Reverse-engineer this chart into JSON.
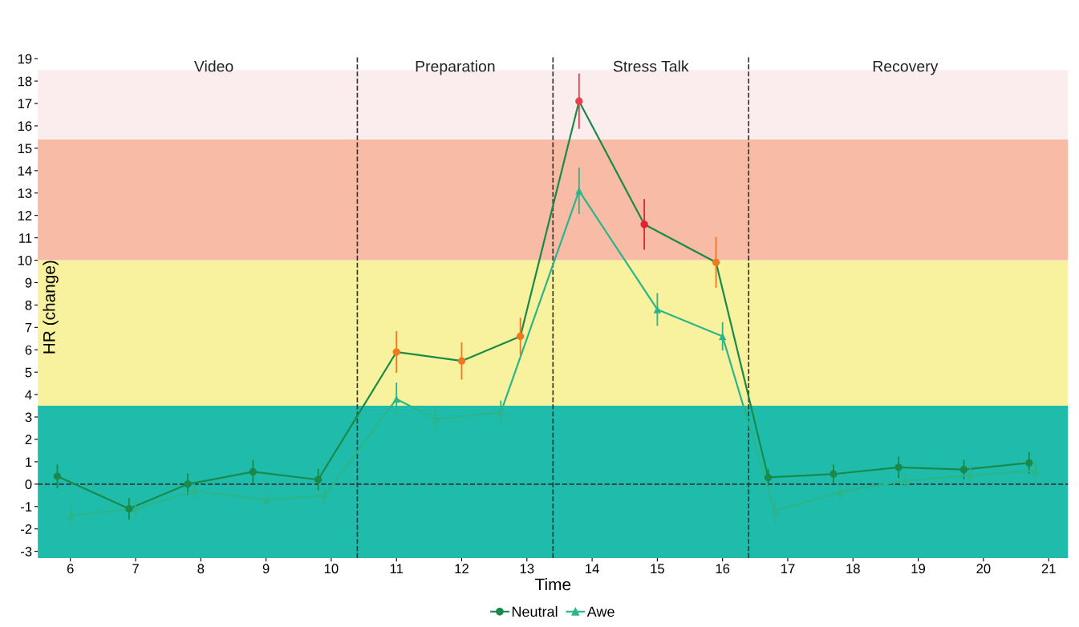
{
  "chart_data": {
    "type": "line",
    "xlabel": "Time",
    "ylabel": "HR (change)",
    "xlim": [
      5.5,
      21.3
    ],
    "xticks": [
      6,
      7,
      8,
      9,
      10,
      11,
      12,
      13,
      14,
      15,
      16,
      17,
      18,
      19,
      20,
      21
    ],
    "ylim": [
      -3.3,
      19.1
    ],
    "yticks": [
      -3,
      -2,
      -1,
      0,
      1,
      2,
      3,
      4,
      5,
      6,
      7,
      8,
      9,
      10,
      11,
      12,
      13,
      14,
      15,
      16,
      17,
      18,
      19
    ],
    "grid": false,
    "legend": "bottom",
    "line_style": "solid",
    "bands": [
      {
        "axis": "y",
        "from": -3.3,
        "to": 3.5,
        "color": "#1fbcac"
      },
      {
        "axis": "y",
        "from": 3.5,
        "to": 10,
        "color": "#f8f29e"
      },
      {
        "axis": "y",
        "from": 10,
        "to": 15.4,
        "color": "#f8bba5"
      },
      {
        "axis": "y",
        "from": 15.4,
        "to": 18.5,
        "color": "#fbecee"
      }
    ],
    "ref_lines": [
      {
        "axis": "y",
        "value": 0,
        "line_style": "dashed",
        "color": "#333333"
      },
      {
        "axis": "x",
        "value": 10.4,
        "line_style": "dashed",
        "color": "#333333"
      },
      {
        "axis": "x",
        "value": 13.4,
        "line_style": "dashed",
        "color": "#333333"
      },
      {
        "axis": "x",
        "value": 16.4,
        "line_style": "dashed",
        "color": "#333333"
      }
    ],
    "annotations": [
      {
        "text": "Video",
        "x": 8.2,
        "y": 18.6
      },
      {
        "text": "Preparation",
        "x": 11.9,
        "y": 18.6
      },
      {
        "text": "Stress Talk",
        "x": 14.9,
        "y": 18.6
      },
      {
        "text": "Recovery",
        "x": 18.8,
        "y": 18.6
      }
    ],
    "series": [
      {
        "name": "Neutral",
        "color": "#1a8a4a",
        "marker": "circle",
        "x": [
          5.8,
          6.9,
          7.8,
          8.8,
          9.8,
          11.0,
          12.0,
          12.9,
          13.8,
          14.8,
          15.9,
          16.7,
          17.7,
          18.7,
          19.7,
          20.7
        ],
        "values": [
          0.35,
          -1.1,
          0,
          0.55,
          0.2,
          5.9,
          5.5,
          6.6,
          17.1,
          11.6,
          9.9,
          0.3,
          0.45,
          0.75,
          0.65,
          0.95
        ],
        "errors": [
          0.5,
          0.45,
          0.45,
          0.5,
          0.45,
          0.9,
          0.8,
          0.8,
          1.2,
          1.1,
          1.1,
          0.35,
          0.4,
          0.45,
          0.4,
          0.45
        ],
        "colors": [
          "#1a8a4a",
          "#1a8a4a",
          "#1a8a4a",
          "#1a8a4a",
          "#1a8a4a",
          "#f07820",
          "#f07820",
          "#f07820",
          "#e8404a",
          "#e82030",
          "#f07820",
          "#1a8a4a",
          "#1a8a4a",
          "#1a8a4a",
          "#1a8a4a",
          "#1a8a4a"
        ]
      },
      {
        "name": "Awe",
        "color": "#2bb58a",
        "marker": "triangle",
        "x": [
          6.0,
          7.0,
          7.9,
          9.0,
          9.9,
          11.0,
          11.6,
          12.6,
          13.8,
          15.0,
          16.0,
          16.8,
          17.8,
          18.8,
          19.8,
          20.8
        ],
        "values": [
          -1.4,
          -1.1,
          -0.3,
          -0.7,
          -0.5,
          3.8,
          2.9,
          3.2,
          13.1,
          7.8,
          6.6,
          -1.2,
          -0.35,
          0.15,
          0.4,
          0.6
        ],
        "errors": [
          0.5,
          0.4,
          0.3,
          0.3,
          0.3,
          0.7,
          0.5,
          0.5,
          1.0,
          0.7,
          0.6,
          0.5,
          0.3,
          0.3,
          0.35,
          0.35
        ]
      }
    ]
  }
}
